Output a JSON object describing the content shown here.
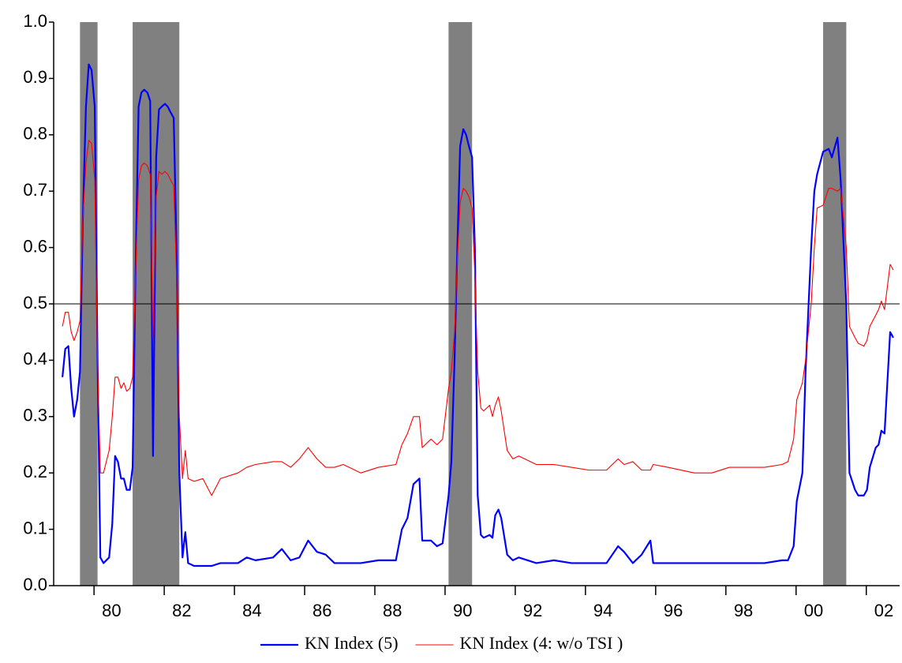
{
  "chart_data": {
    "type": "line",
    "x": [
      1979.1,
      1979.18,
      1979.27,
      1979.35,
      1979.43,
      1979.52,
      1979.6,
      1979.68,
      1979.77,
      1979.85,
      1979.93,
      1980.02,
      1980.1,
      1980.18,
      1980.27,
      1980.43,
      1980.52,
      1980.6,
      1980.68,
      1980.77,
      1980.85,
      1980.93,
      1981.02,
      1981.1,
      1981.18,
      1981.27,
      1981.35,
      1981.43,
      1981.52,
      1981.6,
      1981.68,
      1981.77,
      1981.85,
      1981.93,
      1982.02,
      1982.1,
      1982.18,
      1982.27,
      1982.35,
      1982.43,
      1982.52,
      1982.6,
      1982.68,
      1982.85,
      1983.1,
      1983.35,
      1983.6,
      1984.1,
      1984.35,
      1984.6,
      1985.1,
      1985.35,
      1985.6,
      1985.85,
      1986.1,
      1986.35,
      1986.6,
      1986.85,
      1987.1,
      1987.6,
      1988.1,
      1988.6,
      1988.77,
      1988.93,
      1989.1,
      1989.27,
      1989.35,
      1989.6,
      1989.77,
      1989.93,
      1990.1,
      1990.18,
      1990.27,
      1990.35,
      1990.43,
      1990.52,
      1990.6,
      1990.68,
      1990.77,
      1990.85,
      1990.93,
      1991.02,
      1991.1,
      1991.27,
      1991.35,
      1991.43,
      1991.52,
      1991.6,
      1991.77,
      1991.93,
      1992.1,
      1992.6,
      1993.1,
      1993.6,
      1994.1,
      1994.6,
      1994.93,
      1995.1,
      1995.35,
      1995.6,
      1995.85,
      1995.93,
      1996.35,
      1997.1,
      1997.6,
      1998.1,
      1998.6,
      1999.1,
      1999.6,
      1999.77,
      1999.93,
      2000.02,
      2000.18,
      2000.27,
      2000.43,
      2000.52,
      2000.6,
      2000.77,
      2000.93,
      2001.02,
      2001.18,
      2001.27,
      2001.43,
      2001.52,
      2001.68,
      2001.77,
      2001.93,
      2002.02,
      2002.1,
      2002.27,
      2002.35,
      2002.43,
      2002.52,
      2002.6,
      2002.68,
      2002.77
    ],
    "series": [
      {
        "name": "KN Index (5)",
        "color": "#0000ff",
        "width": 2.2,
        "values": [
          0.37,
          0.42,
          0.425,
          0.35,
          0.3,
          0.33,
          0.38,
          0.65,
          0.85,
          0.925,
          0.915,
          0.85,
          0.4,
          0.05,
          0.04,
          0.05,
          0.11,
          0.23,
          0.22,
          0.19,
          0.19,
          0.17,
          0.17,
          0.21,
          0.55,
          0.85,
          0.875,
          0.88,
          0.875,
          0.86,
          0.23,
          0.76,
          0.845,
          0.85,
          0.855,
          0.85,
          0.84,
          0.83,
          0.6,
          0.2,
          0.05,
          0.095,
          0.04,
          0.035,
          0.035,
          0.035,
          0.04,
          0.04,
          0.05,
          0.045,
          0.05,
          0.065,
          0.045,
          0.05,
          0.08,
          0.06,
          0.055,
          0.04,
          0.04,
          0.04,
          0.045,
          0.045,
          0.1,
          0.12,
          0.18,
          0.19,
          0.08,
          0.08,
          0.07,
          0.075,
          0.16,
          0.22,
          0.4,
          0.6,
          0.78,
          0.81,
          0.8,
          0.78,
          0.76,
          0.6,
          0.16,
          0.09,
          0.085,
          0.09,
          0.085,
          0.125,
          0.135,
          0.12,
          0.055,
          0.045,
          0.05,
          0.04,
          0.045,
          0.04,
          0.04,
          0.04,
          0.07,
          0.06,
          0.04,
          0.055,
          0.08,
          0.04,
          0.04,
          0.04,
          0.04,
          0.04,
          0.04,
          0.04,
          0.045,
          0.045,
          0.07,
          0.15,
          0.2,
          0.38,
          0.6,
          0.7,
          0.73,
          0.77,
          0.775,
          0.76,
          0.795,
          0.72,
          0.5,
          0.2,
          0.17,
          0.16,
          0.16,
          0.17,
          0.21,
          0.245,
          0.25,
          0.275,
          0.27,
          0.36,
          0.45,
          0.44
        ]
      },
      {
        "name": "KN Index (4: w/o  TSI )",
        "color": "#ff0000",
        "width": 1.1,
        "values": [
          0.46,
          0.485,
          0.485,
          0.45,
          0.435,
          0.45,
          0.47,
          0.65,
          0.75,
          0.79,
          0.785,
          0.72,
          0.4,
          0.2,
          0.2,
          0.24,
          0.3,
          0.37,
          0.37,
          0.35,
          0.36,
          0.345,
          0.35,
          0.37,
          0.55,
          0.72,
          0.745,
          0.75,
          0.745,
          0.73,
          0.44,
          0.69,
          0.735,
          0.73,
          0.735,
          0.73,
          0.72,
          0.71,
          0.55,
          0.3,
          0.19,
          0.24,
          0.19,
          0.185,
          0.19,
          0.16,
          0.19,
          0.2,
          0.21,
          0.215,
          0.22,
          0.22,
          0.21,
          0.225,
          0.245,
          0.225,
          0.21,
          0.21,
          0.215,
          0.2,
          0.21,
          0.215,
          0.25,
          0.27,
          0.3,
          0.3,
          0.245,
          0.26,
          0.25,
          0.26,
          0.35,
          0.38,
          0.45,
          0.58,
          0.68,
          0.705,
          0.7,
          0.69,
          0.67,
          0.55,
          0.38,
          0.315,
          0.31,
          0.32,
          0.3,
          0.32,
          0.335,
          0.31,
          0.24,
          0.225,
          0.23,
          0.215,
          0.215,
          0.21,
          0.205,
          0.205,
          0.225,
          0.215,
          0.22,
          0.205,
          0.205,
          0.215,
          0.21,
          0.2,
          0.2,
          0.21,
          0.21,
          0.21,
          0.215,
          0.22,
          0.26,
          0.33,
          0.36,
          0.4,
          0.5,
          0.6,
          0.67,
          0.675,
          0.705,
          0.705,
          0.7,
          0.705,
          0.6,
          0.46,
          0.44,
          0.43,
          0.425,
          0.435,
          0.46,
          0.48,
          0.49,
          0.505,
          0.49,
          0.53,
          0.57,
          0.56
        ]
      }
    ],
    "shaded_periods": [
      [
        1979.6,
        1980.1
      ],
      [
        1981.1,
        1982.43
      ],
      [
        1990.1,
        1990.77
      ],
      [
        2000.77,
        2001.43
      ]
    ],
    "shade_color": "#808080",
    "hline": 0.5,
    "xlim": [
      1978.85,
      2002.95
    ],
    "xticks": [
      {
        "value": 1980,
        "label": "80"
      },
      {
        "value": 1982,
        "label": "82"
      },
      {
        "value": 1984,
        "label": "84"
      },
      {
        "value": 1986,
        "label": "86"
      },
      {
        "value": 1988,
        "label": "88"
      },
      {
        "value": 1990,
        "label": "90"
      },
      {
        "value": 1992,
        "label": "92"
      },
      {
        "value": 1994,
        "label": "94"
      },
      {
        "value": 1996,
        "label": "96"
      },
      {
        "value": 1998,
        "label": "98"
      },
      {
        "value": 2000,
        "label": "00"
      },
      {
        "value": 2002,
        "label": "02"
      }
    ],
    "ylim": [
      0,
      1
    ],
    "yticks": [
      {
        "value": 0,
        "label": "0.0"
      },
      {
        "value": 0.1,
        "label": "0.1"
      },
      {
        "value": 0.2,
        "label": "0.2"
      },
      {
        "value": 0.3,
        "label": "0.3"
      },
      {
        "value": 0.4,
        "label": "0.4"
      },
      {
        "value": 0.5,
        "label": "0.5"
      },
      {
        "value": 0.6,
        "label": "0.6"
      },
      {
        "value": 0.7,
        "label": "0.7"
      },
      {
        "value": 0.8,
        "label": "0.8"
      },
      {
        "value": 0.9,
        "label": "0.9"
      },
      {
        "value": 1,
        "label": "1.0"
      }
    ],
    "legend": "bottom"
  }
}
